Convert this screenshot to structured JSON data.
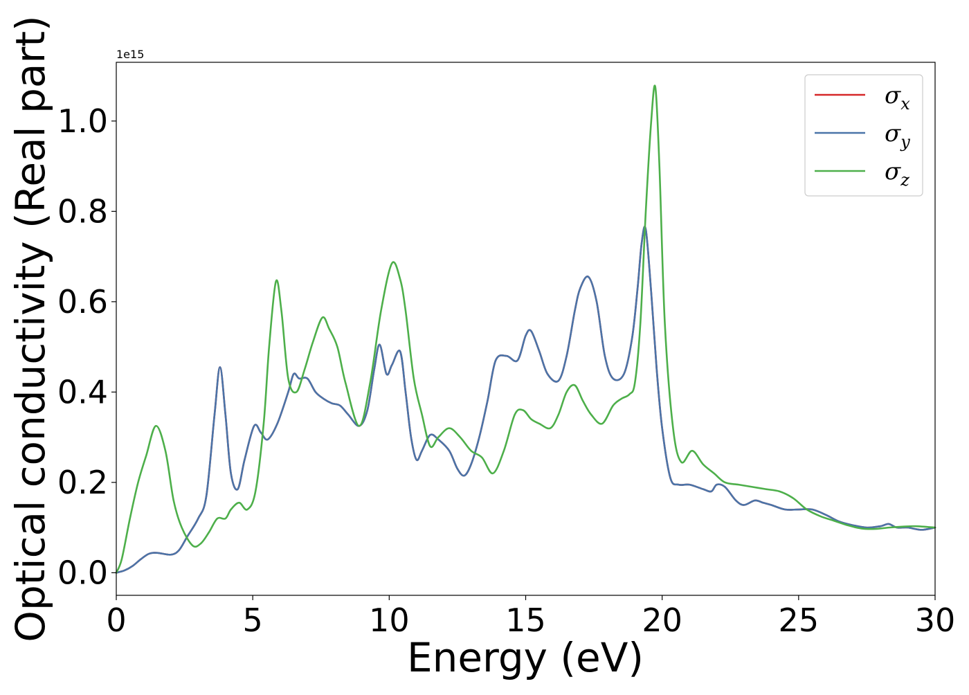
{
  "chart_data": {
    "type": "line",
    "xlabel": "Energy (eV)",
    "ylabel": "Optical conductivity (Real part)",
    "y_offset_text": "1e15",
    "y_scale": 1000000000000000.0,
    "xlim": [
      0,
      30
    ],
    "ylim": [
      -0.05,
      1.13
    ],
    "x_ticks": [
      0,
      5,
      10,
      15,
      20,
      25,
      30
    ],
    "x_tick_labels": [
      "0",
      "5",
      "10",
      "15",
      "20",
      "25",
      "30"
    ],
    "y_ticks": [
      0.0,
      0.2,
      0.4,
      0.6,
      0.8,
      1.0
    ],
    "y_tick_labels": [
      "0.0",
      "0.2",
      "0.4",
      "0.6",
      "0.8",
      "1.0"
    ],
    "grid": false,
    "legend_position": "top-right",
    "series": [
      {
        "name": "σ",
        "subscript": "x",
        "color": "#d62728",
        "x": [
          0,
          0.3,
          0.6,
          0.9,
          1.2,
          1.5,
          2.0,
          2.3,
          2.6,
          3.0,
          3.3,
          3.6,
          3.8,
          4.0,
          4.2,
          4.45,
          4.7,
          5.05,
          5.3,
          5.55,
          5.9,
          6.3,
          6.5,
          6.7,
          7.0,
          7.3,
          7.6,
          7.9,
          8.2,
          8.5,
          8.9,
          9.2,
          9.45,
          9.65,
          9.9,
          10.1,
          10.4,
          10.6,
          10.8,
          11.0,
          11.2,
          11.5,
          11.8,
          12.2,
          12.5,
          12.75,
          13.0,
          13.3,
          13.6,
          13.9,
          14.3,
          14.7,
          15.0,
          15.2,
          15.5,
          15.8,
          16.2,
          16.5,
          16.8,
          17.0,
          17.3,
          17.6,
          17.9,
          18.2,
          18.6,
          18.9,
          19.1,
          19.25,
          19.4,
          19.6,
          19.8,
          20.0,
          20.3,
          20.6,
          21.0,
          21.5,
          21.8,
          22.0,
          22.3,
          22.7,
          23.0,
          23.4,
          23.7,
          24.0,
          24.5,
          25.0,
          25.5,
          26.0,
          26.5,
          27.0,
          27.5,
          28.0,
          28.3,
          28.6,
          29.0,
          29.5,
          30.0
        ],
        "y": [
          0.0,
          0.005,
          0.015,
          0.03,
          0.042,
          0.044,
          0.04,
          0.05,
          0.08,
          0.12,
          0.17,
          0.35,
          0.455,
          0.35,
          0.22,
          0.185,
          0.25,
          0.325,
          0.31,
          0.295,
          0.33,
          0.4,
          0.44,
          0.43,
          0.43,
          0.4,
          0.385,
          0.375,
          0.37,
          0.35,
          0.325,
          0.36,
          0.45,
          0.505,
          0.44,
          0.46,
          0.49,
          0.4,
          0.3,
          0.25,
          0.27,
          0.305,
          0.295,
          0.27,
          0.23,
          0.215,
          0.24,
          0.3,
          0.38,
          0.47,
          0.48,
          0.47,
          0.525,
          0.535,
          0.49,
          0.44,
          0.425,
          0.48,
          0.58,
          0.63,
          0.655,
          0.6,
          0.48,
          0.43,
          0.44,
          0.52,
          0.63,
          0.73,
          0.76,
          0.62,
          0.45,
          0.32,
          0.21,
          0.195,
          0.195,
          0.185,
          0.18,
          0.195,
          0.19,
          0.16,
          0.15,
          0.16,
          0.155,
          0.15,
          0.14,
          0.14,
          0.14,
          0.128,
          0.113,
          0.105,
          0.1,
          0.103,
          0.108,
          0.1,
          0.1,
          0.095,
          0.1
        ]
      },
      {
        "name": "σ",
        "subscript": "y",
        "color": "#4a74a8",
        "x": [
          0,
          0.3,
          0.6,
          0.9,
          1.2,
          1.5,
          2.0,
          2.3,
          2.6,
          3.0,
          3.3,
          3.6,
          3.8,
          4.0,
          4.2,
          4.45,
          4.7,
          5.05,
          5.3,
          5.55,
          5.9,
          6.3,
          6.5,
          6.7,
          7.0,
          7.3,
          7.6,
          7.9,
          8.2,
          8.5,
          8.9,
          9.2,
          9.45,
          9.65,
          9.9,
          10.1,
          10.4,
          10.6,
          10.8,
          11.0,
          11.2,
          11.5,
          11.8,
          12.2,
          12.5,
          12.75,
          13.0,
          13.3,
          13.6,
          13.9,
          14.3,
          14.7,
          15.0,
          15.2,
          15.5,
          15.8,
          16.2,
          16.5,
          16.8,
          17.0,
          17.3,
          17.6,
          17.9,
          18.2,
          18.6,
          18.9,
          19.1,
          19.25,
          19.4,
          19.6,
          19.8,
          20.0,
          20.3,
          20.6,
          21.0,
          21.5,
          21.8,
          22.0,
          22.3,
          22.7,
          23.0,
          23.4,
          23.7,
          24.0,
          24.5,
          25.0,
          25.5,
          26.0,
          26.5,
          27.0,
          27.5,
          28.0,
          28.3,
          28.6,
          29.0,
          29.5,
          30.0
        ],
        "y": [
          0.0,
          0.005,
          0.015,
          0.03,
          0.042,
          0.044,
          0.04,
          0.05,
          0.08,
          0.12,
          0.17,
          0.35,
          0.455,
          0.35,
          0.22,
          0.185,
          0.25,
          0.325,
          0.31,
          0.295,
          0.33,
          0.4,
          0.44,
          0.43,
          0.43,
          0.4,
          0.385,
          0.375,
          0.37,
          0.35,
          0.325,
          0.36,
          0.45,
          0.505,
          0.44,
          0.46,
          0.49,
          0.4,
          0.3,
          0.25,
          0.27,
          0.305,
          0.295,
          0.27,
          0.23,
          0.215,
          0.24,
          0.3,
          0.38,
          0.47,
          0.48,
          0.47,
          0.525,
          0.535,
          0.49,
          0.44,
          0.425,
          0.48,
          0.58,
          0.63,
          0.655,
          0.6,
          0.48,
          0.43,
          0.44,
          0.52,
          0.63,
          0.73,
          0.76,
          0.62,
          0.45,
          0.32,
          0.21,
          0.195,
          0.195,
          0.185,
          0.18,
          0.195,
          0.19,
          0.16,
          0.15,
          0.16,
          0.155,
          0.15,
          0.14,
          0.14,
          0.14,
          0.128,
          0.113,
          0.105,
          0.1,
          0.103,
          0.108,
          0.1,
          0.1,
          0.095,
          0.1
        ]
      },
      {
        "name": "σ",
        "subscript": "z",
        "color": "#4daf4a",
        "x": [
          0,
          0.2,
          0.5,
          0.8,
          1.1,
          1.45,
          1.8,
          2.1,
          2.4,
          2.8,
          3.1,
          3.4,
          3.7,
          4.0,
          4.2,
          4.5,
          4.8,
          5.1,
          5.4,
          5.6,
          5.85,
          6.05,
          6.3,
          6.6,
          6.9,
          7.2,
          7.55,
          7.8,
          8.1,
          8.4,
          8.9,
          9.3,
          9.7,
          10.1,
          10.4,
          10.6,
          10.9,
          11.2,
          11.5,
          11.8,
          12.2,
          12.6,
          13.0,
          13.4,
          13.8,
          14.2,
          14.6,
          14.9,
          15.2,
          15.5,
          15.9,
          16.2,
          16.5,
          16.8,
          17.1,
          17.4,
          17.8,
          18.2,
          18.5,
          18.8,
          19.0,
          19.2,
          19.4,
          19.6,
          19.75,
          19.9,
          20.1,
          20.4,
          20.7,
          21.1,
          21.5,
          21.9,
          22.3,
          22.8,
          23.3,
          23.8,
          24.3,
          24.8,
          25.3,
          25.8,
          26.3,
          26.8,
          27.3,
          27.8,
          28.3,
          28.8,
          29.3,
          30.0
        ],
        "y": [
          0.0,
          0.03,
          0.12,
          0.2,
          0.26,
          0.325,
          0.27,
          0.16,
          0.1,
          0.06,
          0.065,
          0.09,
          0.12,
          0.12,
          0.14,
          0.155,
          0.14,
          0.18,
          0.33,
          0.5,
          0.645,
          0.58,
          0.43,
          0.4,
          0.45,
          0.51,
          0.565,
          0.54,
          0.5,
          0.42,
          0.325,
          0.42,
          0.58,
          0.685,
          0.65,
          0.58,
          0.43,
          0.35,
          0.28,
          0.3,
          0.32,
          0.3,
          0.27,
          0.255,
          0.22,
          0.27,
          0.35,
          0.36,
          0.34,
          0.33,
          0.32,
          0.35,
          0.4,
          0.415,
          0.38,
          0.35,
          0.33,
          0.37,
          0.385,
          0.395,
          0.42,
          0.55,
          0.8,
          1.0,
          1.075,
          0.9,
          0.55,
          0.32,
          0.245,
          0.27,
          0.24,
          0.22,
          0.2,
          0.195,
          0.19,
          0.185,
          0.18,
          0.165,
          0.14,
          0.125,
          0.115,
          0.105,
          0.098,
          0.097,
          0.1,
          0.102,
          0.103,
          0.1
        ]
      }
    ]
  }
}
